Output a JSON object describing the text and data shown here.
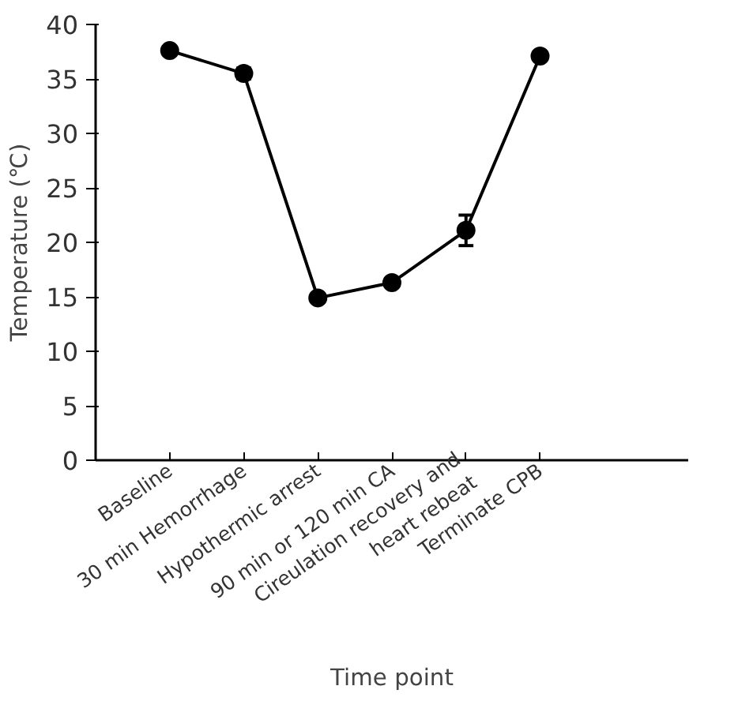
{
  "chart_data": {
    "type": "line",
    "xlabel": "Time point",
    "ylabel": "Temperature (℃)",
    "categories": [
      "Baseline",
      "30 min Hemorrhage",
      "Hypothermic arrest",
      "90 min or 120 min CA",
      "Cireulation recovery and\nheart rebeat",
      "Terminate CPB"
    ],
    "series": [
      {
        "color": "#000000",
        "values": [
          37.6,
          35.5,
          14.9,
          16.3,
          21.1,
          37.1
        ],
        "errors": [
          null,
          0.5,
          null,
          null,
          1.4,
          null
        ]
      }
    ],
    "ylim": [
      0,
      40
    ],
    "yticks": [
      0,
      5,
      10,
      15,
      20,
      25,
      30,
      35,
      40
    ],
    "grid": false,
    "marker": "circle",
    "line_style": "solid"
  }
}
